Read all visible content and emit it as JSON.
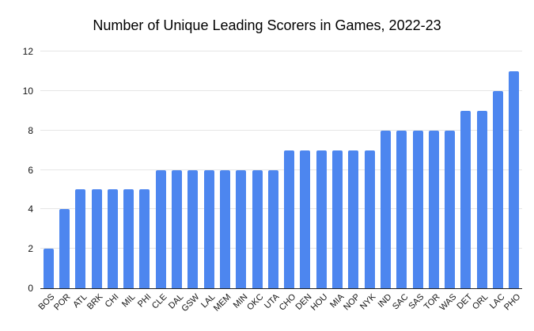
{
  "chart_data": {
    "type": "bar",
    "title": "Number of Unique Leading Scorers in Games, 2022-23",
    "xlabel": "",
    "ylabel": "",
    "categories": [
      "BOS",
      "POR",
      "ATL",
      "BRK",
      "CHI",
      "MIL",
      "PHI",
      "CLE",
      "DAL",
      "GSW",
      "LAL",
      "MEM",
      "MIN",
      "OKC",
      "UTA",
      "CHO",
      "DEN",
      "HOU",
      "MIA",
      "NOP",
      "NYK",
      "IND",
      "SAC",
      "SAS",
      "TOR",
      "WAS",
      "DET",
      "ORL",
      "LAC",
      "PHO"
    ],
    "values": [
      2,
      4,
      5,
      5,
      5,
      5,
      5,
      6,
      6,
      6,
      6,
      6,
      6,
      6,
      6,
      7,
      7,
      7,
      7,
      7,
      7,
      8,
      8,
      8,
      8,
      8,
      9,
      9,
      10,
      11
    ],
    "ylim": [
      0,
      12
    ],
    "yticks": [
      0,
      2,
      4,
      6,
      8,
      10,
      12
    ],
    "grid": true,
    "legend": "none",
    "bar_color": "#4d86ef",
    "gridline_color": "#e6e6e6",
    "axis_line_color": "#212121",
    "label_color": "#141414",
    "title_color": "#000000",
    "background_color": "#ffffff"
  }
}
